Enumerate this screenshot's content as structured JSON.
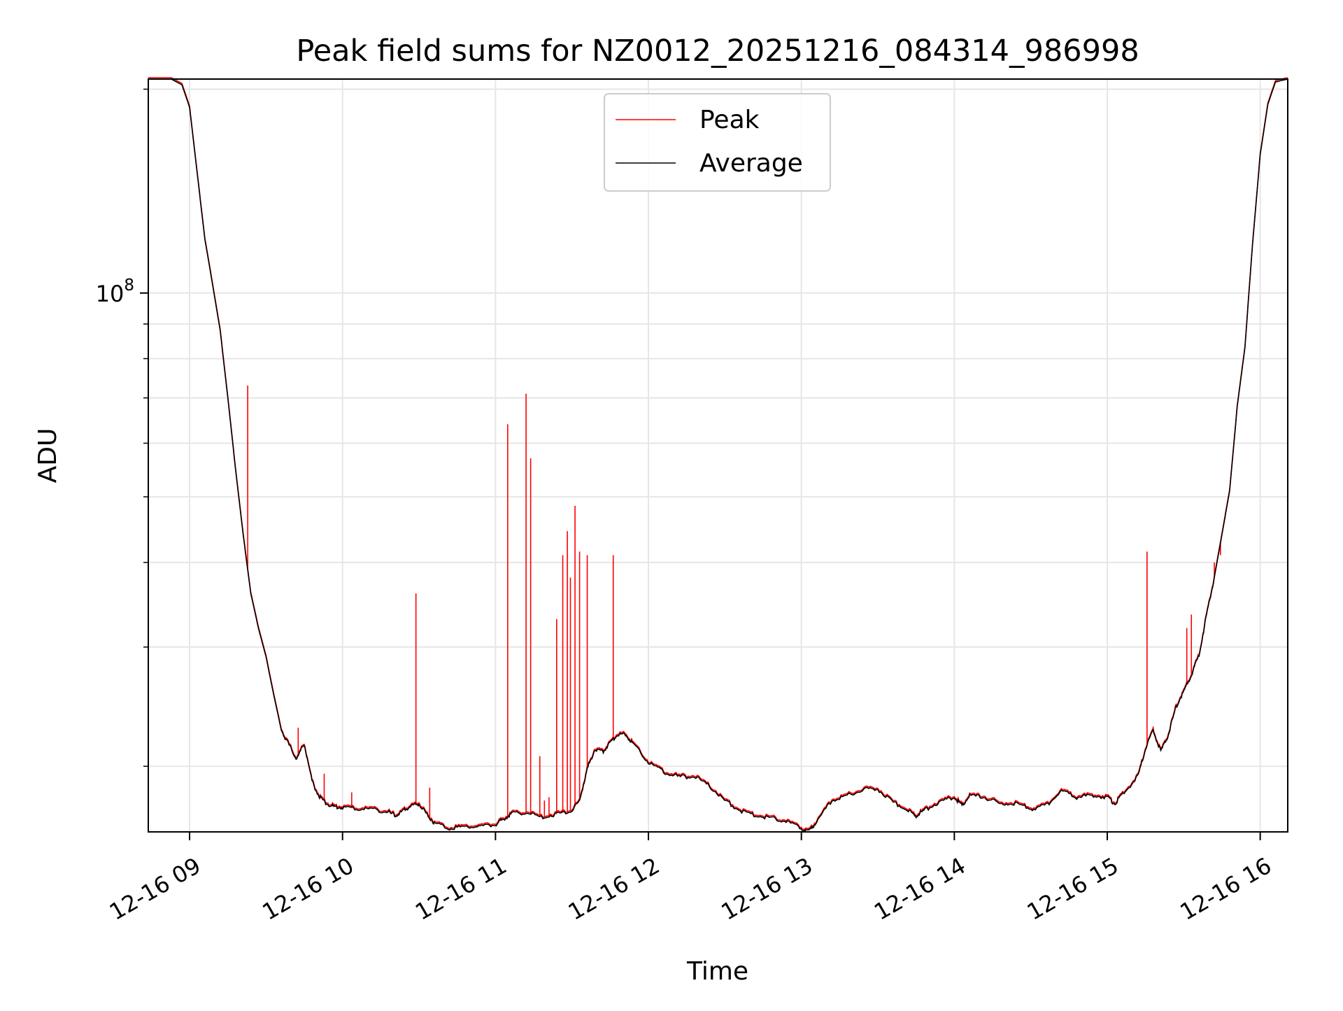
{
  "chart_data": {
    "type": "line",
    "title": "Peak field sums for NZ0012_20251216_084314_986998",
    "xlabel": "Time",
    "ylabel": "ADU",
    "yscale": "log",
    "xlim": [
      8.73,
      16.18
    ],
    "ylim": [
      16000000,
      207000000
    ],
    "grid": true,
    "legend_position": "upper center",
    "x_ticks": [
      {
        "value": 9,
        "label": "12-16 09"
      },
      {
        "value": 10,
        "label": "12-16 10"
      },
      {
        "value": 11,
        "label": "12-16 11"
      },
      {
        "value": 12,
        "label": "12-16 12"
      },
      {
        "value": 13,
        "label": "12-16 13"
      },
      {
        "value": 14,
        "label": "12-16 14"
      },
      {
        "value": 15,
        "label": "12-16 15"
      },
      {
        "value": 16,
        "label": "12-16 16"
      }
    ],
    "y_major_ticks": [
      {
        "value": 100000000,
        "base": "10",
        "exponent": "8"
      }
    ],
    "y_minor_ticks": [
      20000000,
      30000000,
      40000000,
      50000000,
      60000000,
      70000000,
      80000000,
      90000000,
      200000000
    ],
    "series": [
      {
        "name": "Average",
        "color": "#000000",
        "points": [
          [
            8.73,
            207000000
          ],
          [
            8.88,
            207000000
          ],
          [
            8.95,
            203000000
          ],
          [
            9.0,
            188000000
          ],
          [
            9.05,
            150000000
          ],
          [
            9.1,
            120000000
          ],
          [
            9.15,
            103000000
          ],
          [
            9.2,
            88000000
          ],
          [
            9.25,
            70000000
          ],
          [
            9.3,
            55000000
          ],
          [
            9.35,
            44000000
          ],
          [
            9.4,
            36000000
          ],
          [
            9.45,
            32000000
          ],
          [
            9.5,
            29000000
          ],
          [
            9.55,
            25500000
          ],
          [
            9.6,
            22600000
          ],
          [
            9.65,
            21500000
          ],
          [
            9.7,
            20500000
          ],
          [
            9.75,
            21600000
          ],
          [
            9.8,
            19000000
          ],
          [
            9.85,
            18000000
          ],
          [
            9.9,
            17600000
          ],
          [
            9.95,
            17400000
          ],
          [
            10.0,
            17400000
          ],
          [
            10.1,
            17300000
          ],
          [
            10.2,
            17300000
          ],
          [
            10.3,
            17100000
          ],
          [
            10.35,
            16900000
          ],
          [
            10.4,
            17200000
          ],
          [
            10.45,
            17500000
          ],
          [
            10.5,
            17600000
          ],
          [
            10.55,
            17000000
          ],
          [
            10.6,
            16500000
          ],
          [
            10.7,
            16200000
          ],
          [
            10.8,
            16300000
          ],
          [
            10.9,
            16300000
          ],
          [
            11.0,
            16400000
          ],
          [
            11.05,
            16700000
          ],
          [
            11.1,
            17000000
          ],
          [
            11.2,
            17100000
          ],
          [
            11.3,
            16800000
          ],
          [
            11.4,
            17000000
          ],
          [
            11.5,
            17200000
          ],
          [
            11.55,
            17800000
          ],
          [
            11.6,
            19800000
          ],
          [
            11.65,
            21200000
          ],
          [
            11.7,
            21000000
          ],
          [
            11.75,
            21700000
          ],
          [
            11.8,
            22300000
          ],
          [
            11.85,
            22300000
          ],
          [
            11.9,
            21600000
          ],
          [
            12.0,
            20300000
          ],
          [
            12.1,
            19600000
          ],
          [
            12.2,
            19300000
          ],
          [
            12.3,
            19300000
          ],
          [
            12.4,
            18700000
          ],
          [
            12.5,
            17800000
          ],
          [
            12.6,
            17200000
          ],
          [
            12.7,
            16900000
          ],
          [
            12.8,
            16800000
          ],
          [
            12.9,
            16600000
          ],
          [
            13.0,
            16200000
          ],
          [
            13.05,
            16000000
          ],
          [
            13.1,
            16600000
          ],
          [
            13.2,
            17800000
          ],
          [
            13.3,
            18100000
          ],
          [
            13.4,
            18500000
          ],
          [
            13.5,
            18500000
          ],
          [
            13.6,
            17700000
          ],
          [
            13.7,
            17200000
          ],
          [
            13.75,
            16900000
          ],
          [
            13.8,
            17200000
          ],
          [
            13.9,
            17700000
          ],
          [
            14.0,
            18000000
          ],
          [
            14.05,
            17500000
          ],
          [
            14.1,
            18100000
          ],
          [
            14.2,
            18000000
          ],
          [
            14.3,
            17600000
          ],
          [
            14.4,
            17600000
          ],
          [
            14.5,
            17300000
          ],
          [
            14.6,
            17500000
          ],
          [
            14.7,
            18400000
          ],
          [
            14.8,
            18000000
          ],
          [
            14.9,
            18100000
          ],
          [
            15.0,
            18000000
          ],
          [
            15.05,
            17600000
          ],
          [
            15.1,
            18200000
          ],
          [
            15.2,
            19300000
          ],
          [
            15.25,
            21200000
          ],
          [
            15.3,
            22600000
          ],
          [
            15.35,
            21000000
          ],
          [
            15.4,
            22300000
          ],
          [
            15.45,
            24500000
          ],
          [
            15.5,
            25800000
          ],
          [
            15.55,
            27300000
          ],
          [
            15.6,
            29200000
          ],
          [
            15.65,
            33500000
          ],
          [
            15.7,
            38000000
          ],
          [
            15.75,
            44000000
          ],
          [
            15.8,
            51000000
          ],
          [
            15.85,
            68000000
          ],
          [
            15.9,
            83000000
          ],
          [
            15.95,
            118000000
          ],
          [
            16.0,
            160000000
          ],
          [
            16.05,
            190000000
          ],
          [
            16.1,
            205000000
          ],
          [
            16.18,
            207000000
          ]
        ]
      },
      {
        "name": "Peak",
        "color": "#ff0000",
        "spikes": [
          [
            9.38,
            73000000
          ],
          [
            9.71,
            22800000
          ],
          [
            9.88,
            19500000
          ],
          [
            10.06,
            18300000
          ],
          [
            10.48,
            36000000
          ],
          [
            10.57,
            18600000
          ],
          [
            11.08,
            64000000
          ],
          [
            11.2,
            71000000
          ],
          [
            11.23,
            57000000
          ],
          [
            11.29,
            20700000
          ],
          [
            11.32,
            17800000
          ],
          [
            11.35,
            18000000
          ],
          [
            11.4,
            33000000
          ],
          [
            11.44,
            41000000
          ],
          [
            11.47,
            44500000
          ],
          [
            11.49,
            38000000
          ],
          [
            11.52,
            48500000
          ],
          [
            11.55,
            41500000
          ],
          [
            11.6,
            41000000
          ],
          [
            11.77,
            41000000
          ],
          [
            15.26,
            41500000
          ],
          [
            15.3,
            22900000
          ],
          [
            15.52,
            32000000
          ],
          [
            15.55,
            33500000
          ],
          [
            15.7,
            40000000
          ],
          [
            15.74,
            41000000
          ]
        ]
      }
    ]
  }
}
